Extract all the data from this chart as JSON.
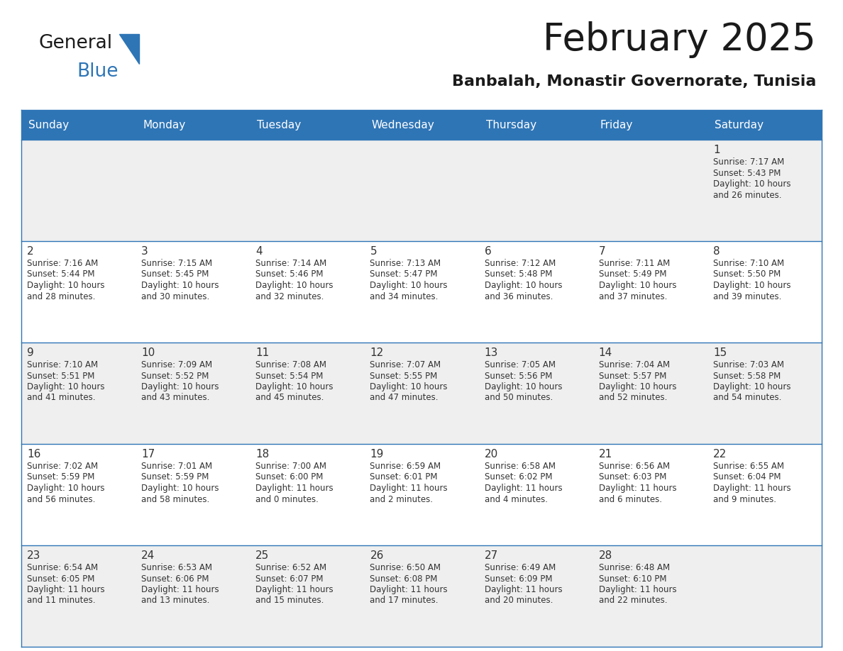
{
  "title": "February 2025",
  "subtitle": "Banbalah, Monastir Governorate, Tunisia",
  "header_bg": "#2E75B6",
  "header_text": "#FFFFFF",
  "cell_bg_even": "#EFEFEF",
  "cell_bg_odd": "#FFFFFF",
  "border_color": "#2E75B6",
  "text_color": "#333333",
  "day_names": [
    "Sunday",
    "Monday",
    "Tuesday",
    "Wednesday",
    "Thursday",
    "Friday",
    "Saturday"
  ],
  "days": [
    {
      "day": 1,
      "col": 6,
      "row": 0,
      "sunrise": "7:17 AM",
      "sunset": "5:43 PM",
      "dl1": "Daylight: 10 hours",
      "dl2": "and 26 minutes."
    },
    {
      "day": 2,
      "col": 0,
      "row": 1,
      "sunrise": "7:16 AM",
      "sunset": "5:44 PM",
      "dl1": "Daylight: 10 hours",
      "dl2": "and 28 minutes."
    },
    {
      "day": 3,
      "col": 1,
      "row": 1,
      "sunrise": "7:15 AM",
      "sunset": "5:45 PM",
      "dl1": "Daylight: 10 hours",
      "dl2": "and 30 minutes."
    },
    {
      "day": 4,
      "col": 2,
      "row": 1,
      "sunrise": "7:14 AM",
      "sunset": "5:46 PM",
      "dl1": "Daylight: 10 hours",
      "dl2": "and 32 minutes."
    },
    {
      "day": 5,
      "col": 3,
      "row": 1,
      "sunrise": "7:13 AM",
      "sunset": "5:47 PM",
      "dl1": "Daylight: 10 hours",
      "dl2": "and 34 minutes."
    },
    {
      "day": 6,
      "col": 4,
      "row": 1,
      "sunrise": "7:12 AM",
      "sunset": "5:48 PM",
      "dl1": "Daylight: 10 hours",
      "dl2": "and 36 minutes."
    },
    {
      "day": 7,
      "col": 5,
      "row": 1,
      "sunrise": "7:11 AM",
      "sunset": "5:49 PM",
      "dl1": "Daylight: 10 hours",
      "dl2": "and 37 minutes."
    },
    {
      "day": 8,
      "col": 6,
      "row": 1,
      "sunrise": "7:10 AM",
      "sunset": "5:50 PM",
      "dl1": "Daylight: 10 hours",
      "dl2": "and 39 minutes."
    },
    {
      "day": 9,
      "col": 0,
      "row": 2,
      "sunrise": "7:10 AM",
      "sunset": "5:51 PM",
      "dl1": "Daylight: 10 hours",
      "dl2": "and 41 minutes."
    },
    {
      "day": 10,
      "col": 1,
      "row": 2,
      "sunrise": "7:09 AM",
      "sunset": "5:52 PM",
      "dl1": "Daylight: 10 hours",
      "dl2": "and 43 minutes."
    },
    {
      "day": 11,
      "col": 2,
      "row": 2,
      "sunrise": "7:08 AM",
      "sunset": "5:54 PM",
      "dl1": "Daylight: 10 hours",
      "dl2": "and 45 minutes."
    },
    {
      "day": 12,
      "col": 3,
      "row": 2,
      "sunrise": "7:07 AM",
      "sunset": "5:55 PM",
      "dl1": "Daylight: 10 hours",
      "dl2": "and 47 minutes."
    },
    {
      "day": 13,
      "col": 4,
      "row": 2,
      "sunrise": "7:05 AM",
      "sunset": "5:56 PM",
      "dl1": "Daylight: 10 hours",
      "dl2": "and 50 minutes."
    },
    {
      "day": 14,
      "col": 5,
      "row": 2,
      "sunrise": "7:04 AM",
      "sunset": "5:57 PM",
      "dl1": "Daylight: 10 hours",
      "dl2": "and 52 minutes."
    },
    {
      "day": 15,
      "col": 6,
      "row": 2,
      "sunrise": "7:03 AM",
      "sunset": "5:58 PM",
      "dl1": "Daylight: 10 hours",
      "dl2": "and 54 minutes."
    },
    {
      "day": 16,
      "col": 0,
      "row": 3,
      "sunrise": "7:02 AM",
      "sunset": "5:59 PM",
      "dl1": "Daylight: 10 hours",
      "dl2": "and 56 minutes."
    },
    {
      "day": 17,
      "col": 1,
      "row": 3,
      "sunrise": "7:01 AM",
      "sunset": "5:59 PM",
      "dl1": "Daylight: 10 hours",
      "dl2": "and 58 minutes."
    },
    {
      "day": 18,
      "col": 2,
      "row": 3,
      "sunrise": "7:00 AM",
      "sunset": "6:00 PM",
      "dl1": "Daylight: 11 hours",
      "dl2": "and 0 minutes."
    },
    {
      "day": 19,
      "col": 3,
      "row": 3,
      "sunrise": "6:59 AM",
      "sunset": "6:01 PM",
      "dl1": "Daylight: 11 hours",
      "dl2": "and 2 minutes."
    },
    {
      "day": 20,
      "col": 4,
      "row": 3,
      "sunrise": "6:58 AM",
      "sunset": "6:02 PM",
      "dl1": "Daylight: 11 hours",
      "dl2": "and 4 minutes."
    },
    {
      "day": 21,
      "col": 5,
      "row": 3,
      "sunrise": "6:56 AM",
      "sunset": "6:03 PM",
      "dl1": "Daylight: 11 hours",
      "dl2": "and 6 minutes."
    },
    {
      "day": 22,
      "col": 6,
      "row": 3,
      "sunrise": "6:55 AM",
      "sunset": "6:04 PM",
      "dl1": "Daylight: 11 hours",
      "dl2": "and 9 minutes."
    },
    {
      "day": 23,
      "col": 0,
      "row": 4,
      "sunrise": "6:54 AM",
      "sunset": "6:05 PM",
      "dl1": "Daylight: 11 hours",
      "dl2": "and 11 minutes."
    },
    {
      "day": 24,
      "col": 1,
      "row": 4,
      "sunrise": "6:53 AM",
      "sunset": "6:06 PM",
      "dl1": "Daylight: 11 hours",
      "dl2": "and 13 minutes."
    },
    {
      "day": 25,
      "col": 2,
      "row": 4,
      "sunrise": "6:52 AM",
      "sunset": "6:07 PM",
      "dl1": "Daylight: 11 hours",
      "dl2": "and 15 minutes."
    },
    {
      "day": 26,
      "col": 3,
      "row": 4,
      "sunrise": "6:50 AM",
      "sunset": "6:08 PM",
      "dl1": "Daylight: 11 hours",
      "dl2": "and 17 minutes."
    },
    {
      "day": 27,
      "col": 4,
      "row": 4,
      "sunrise": "6:49 AM",
      "sunset": "6:09 PM",
      "dl1": "Daylight: 11 hours",
      "dl2": "and 20 minutes."
    },
    {
      "day": 28,
      "col": 5,
      "row": 4,
      "sunrise": "6:48 AM",
      "sunset": "6:10 PM",
      "dl1": "Daylight: 11 hours",
      "dl2": "and 22 minutes."
    }
  ],
  "figsize": [
    11.88,
    9.18
  ],
  "dpi": 100
}
